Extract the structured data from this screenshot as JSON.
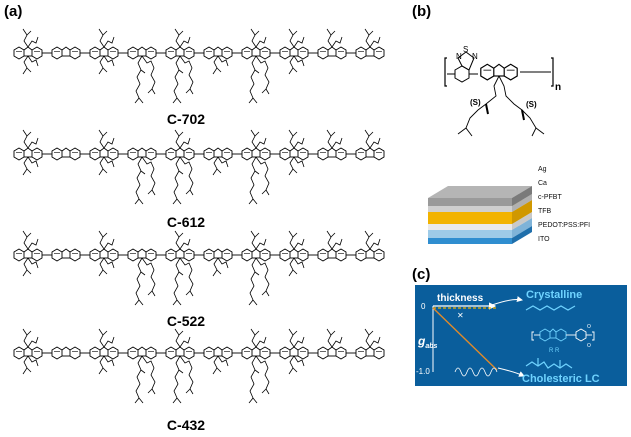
{
  "panels": {
    "a": {
      "label": "(a)",
      "compounds": [
        "C-702",
        "C-612",
        "C-522",
        "C-432"
      ]
    },
    "b": {
      "label": "(b)",
      "thiadiazole_atoms": [
        "N",
        "S",
        "N"
      ],
      "repeat_subscript": "n",
      "stereo_labels": [
        "(S)",
        "(S)"
      ],
      "layers": [
        {
          "name": "Ag",
          "color": "#9a9a9a"
        },
        {
          "name": "Ca",
          "color": "#cfcfcf"
        },
        {
          "name": "c-PFBT",
          "color": "#f2b300"
        },
        {
          "name": "TFB",
          "color": "#e9e9e9"
        },
        {
          "name": "PEDOT:PSS:PFI",
          "color": "#9ecbe8"
        },
        {
          "name": "ITO",
          "color": "#2f8ed0"
        }
      ]
    },
    "c": {
      "label": "(c)",
      "background": "#0a5e9c",
      "thickness_label": "thickness",
      "y_symbol": "g",
      "y_subscript": "abs",
      "y_ticks": [
        "0",
        "-1.0"
      ],
      "crystalline_label": "Crystalline",
      "cholesteric_label": "Cholesteric LC",
      "substituent_label": "R R"
    }
  }
}
